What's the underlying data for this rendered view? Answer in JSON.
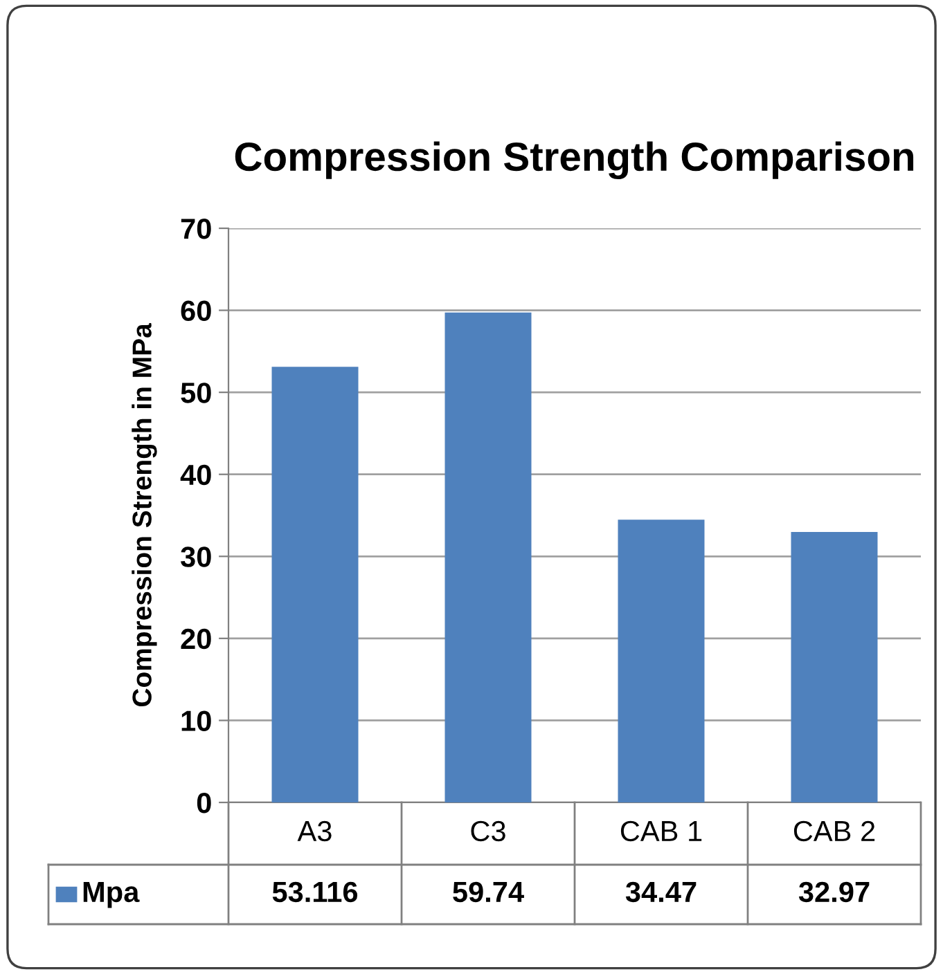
{
  "chart_data": {
    "type": "bar",
    "title": "Compression Strength Comparison",
    "ylabel": "Compression Strength in MPa",
    "categories": [
      "A3",
      "C3",
      "CAB 1",
      "CAB 2"
    ],
    "series": [
      {
        "name": "Mpa",
        "color": "#4f81bd",
        "values": [
          53.116,
          59.74,
          34.47,
          32.97
        ]
      }
    ],
    "ylim": [
      0,
      70
    ],
    "yticks": [
      0,
      10,
      20,
      30,
      40,
      50,
      60,
      70
    ],
    "grid": "y",
    "legend": "bottom",
    "data_labels": true
  }
}
